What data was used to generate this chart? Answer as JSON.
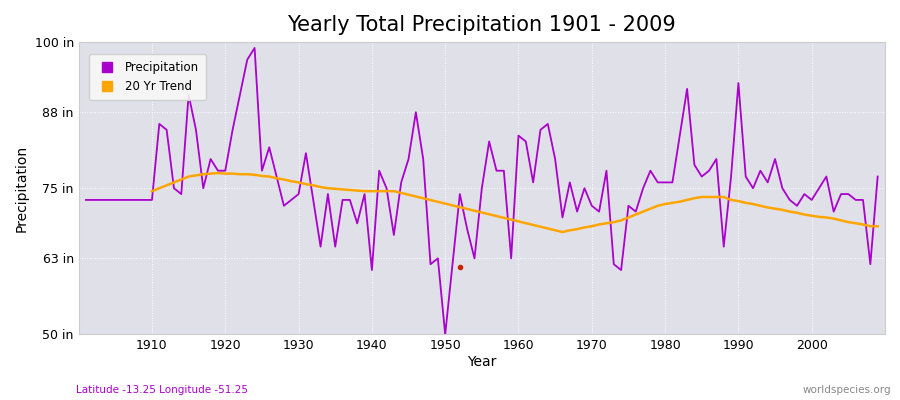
{
  "title": "Yearly Total Precipitation 1901 - 2009",
  "xlabel": "Year",
  "ylabel": "Precipitation",
  "bottom_left_label": "Latitude -13.25 Longitude -51.25",
  "bottom_right_label": "worldspecies.org",
  "precip_color": "#AA00CC",
  "trend_color": "#FFA500",
  "bg_color": "#E0E0E8",
  "fig_color": "#FFFFFF",
  "years": [
    1901,
    1902,
    1903,
    1904,
    1905,
    1906,
    1907,
    1908,
    1909,
    1910,
    1911,
    1912,
    1913,
    1914,
    1915,
    1916,
    1917,
    1918,
    1919,
    1920,
    1921,
    1922,
    1923,
    1924,
    1925,
    1926,
    1927,
    1928,
    1929,
    1930,
    1931,
    1932,
    1933,
    1934,
    1935,
    1936,
    1937,
    1938,
    1939,
    1940,
    1941,
    1942,
    1943,
    1944,
    1945,
    1946,
    1947,
    1948,
    1949,
    1950,
    1951,
    1952,
    1953,
    1954,
    1955,
    1956,
    1957,
    1958,
    1959,
    1960,
    1961,
    1962,
    1963,
    1964,
    1965,
    1966,
    1967,
    1968,
    1969,
    1970,
    1971,
    1972,
    1973,
    1974,
    1975,
    1976,
    1977,
    1978,
    1979,
    1980,
    1981,
    1982,
    1983,
    1984,
    1985,
    1986,
    1987,
    1988,
    1989,
    1990,
    1991,
    1992,
    1993,
    1994,
    1995,
    1996,
    1997,
    1998,
    1999,
    2000,
    2001,
    2002,
    2003,
    2004,
    2005,
    2006,
    2007,
    2008,
    2009
  ],
  "precip": [
    73,
    73,
    73,
    73,
    73,
    73,
    73,
    73,
    73,
    73,
    86,
    85,
    75,
    74,
    91,
    85,
    75,
    80,
    78,
    78,
    85,
    91,
    97,
    99,
    78,
    82,
    77,
    72,
    73,
    74,
    81,
    73,
    65,
    74,
    65,
    73,
    73,
    69,
    74,
    61,
    78,
    75,
    67,
    76,
    80,
    88,
    80,
    62,
    63,
    50,
    62,
    74,
    68,
    63,
    75,
    83,
    78,
    78,
    63,
    84,
    83,
    76,
    85,
    86,
    80,
    70,
    76,
    71,
    75,
    72,
    71,
    78,
    62,
    61,
    72,
    71,
    75,
    78,
    76,
    76,
    76,
    84,
    92,
    79,
    77,
    78,
    80,
    65,
    77,
    93,
    77,
    75,
    78,
    76,
    80,
    75,
    73,
    72,
    74,
    73,
    75,
    77,
    71,
    74,
    74,
    73,
    73,
    62,
    77
  ],
  "trend_years": [
    1910,
    1911,
    1912,
    1913,
    1914,
    1915,
    1916,
    1917,
    1918,
    1919,
    1920,
    1921,
    1922,
    1923,
    1924,
    1925,
    1926,
    1927,
    1928,
    1929,
    1930,
    1931,
    1932,
    1933,
    1934,
    1935,
    1936,
    1937,
    1938,
    1939,
    1940,
    1941,
    1942,
    1943,
    1966,
    1967,
    1968,
    1969,
    1970,
    1971,
    1972,
    1973,
    1974,
    1975,
    1976,
    1977,
    1978,
    1979,
    1980,
    1981,
    1982,
    1983,
    1984,
    1985,
    1986,
    1987,
    1988,
    1989,
    1990,
    1991,
    1992,
    1993,
    1994,
    1995,
    1996,
    1997,
    1998,
    1999,
    2000,
    2001,
    2002,
    2003,
    2004,
    2005,
    2006,
    2007,
    2008,
    2009
  ],
  "trend_vals": [
    74.5,
    75.0,
    75.5,
    76.0,
    76.5,
    77.0,
    77.2,
    77.4,
    77.5,
    77.6,
    77.5,
    77.5,
    77.4,
    77.4,
    77.3,
    77.1,
    77.0,
    76.7,
    76.5,
    76.2,
    76.0,
    75.7,
    75.5,
    75.2,
    75.0,
    74.9,
    74.8,
    74.7,
    74.6,
    74.5,
    74.5,
    74.5,
    74.5,
    74.5,
    67.5,
    67.8,
    68.0,
    68.3,
    68.5,
    68.8,
    69.0,
    69.2,
    69.5,
    70.0,
    70.5,
    71.0,
    71.5,
    72.0,
    72.3,
    72.5,
    72.7,
    73.0,
    73.3,
    73.5,
    73.5,
    73.5,
    73.5,
    73.0,
    72.8,
    72.5,
    72.3,
    72.0,
    71.7,
    71.5,
    71.3,
    71.0,
    70.8,
    70.5,
    70.3,
    70.1,
    70.0,
    69.8,
    69.5,
    69.2,
    69.0,
    68.8,
    68.5,
    68.5
  ],
  "dot_year": 1952,
  "dot_val": 61.5,
  "dot_color": "#CC2200",
  "ylim": [
    50,
    100
  ],
  "xlim": [
    1900,
    2010
  ],
  "yticks": [
    50,
    63,
    75,
    88,
    100
  ],
  "ytick_labels": [
    "50 in",
    "63 in",
    "75 in",
    "88 in",
    "100 in"
  ],
  "xticks": [
    1910,
    1920,
    1930,
    1940,
    1950,
    1960,
    1970,
    1980,
    1990,
    2000
  ],
  "legend_precip": "Precipitation",
  "legend_trend": "20 Yr Trend",
  "title_fontsize": 15,
  "label_fontsize": 9,
  "bottom_label_color_left": "#AA00CC",
  "bottom_label_color_right": "#888888"
}
